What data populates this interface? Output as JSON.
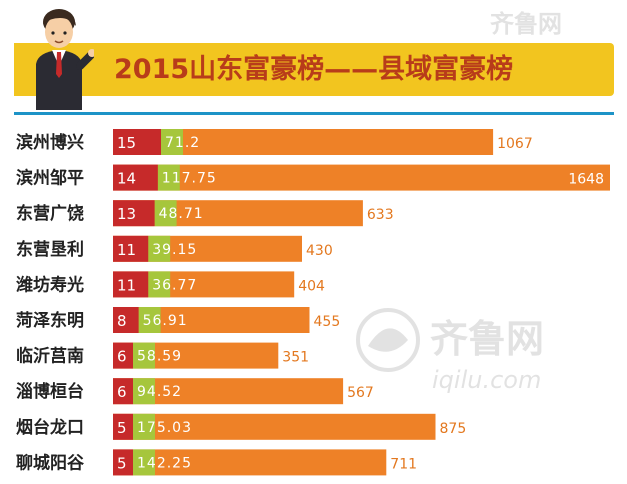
{
  "header": {
    "title": "2015山东富豪榜——县域富豪榜"
  },
  "watermark": {
    "brand": "齐鲁网",
    "domain": "iqilu.com"
  },
  "colors": {
    "rank": "#c62a2a",
    "middle": "#a6c63c",
    "total": "#ee8127",
    "banner": "#f2c51f",
    "title": "#b83c1a",
    "separator": "#1d93c7"
  },
  "chart_data": {
    "type": "bar",
    "orientation": "horizontal",
    "stacked": true,
    "categories": [
      "滨州博兴",
      "滨州邹平",
      "东营广饶",
      "东营垦利",
      "潍坊寿光",
      "菏泽东明",
      "临沂莒南",
      "淄博桓台",
      "烟台龙口",
      "聊城阳谷"
    ],
    "series": [
      {
        "values": [
          15,
          14,
          13,
          11,
          11,
          8,
          6,
          6,
          5,
          5
        ]
      },
      {
        "values": [
          "71.2",
          "117.75",
          "48.71",
          "39.15",
          "36.77",
          "56.91",
          "58.59",
          "94.52",
          "175.03",
          "142.25"
        ]
      },
      {
        "values": [
          1067,
          1648,
          633,
          430,
          404,
          455,
          351,
          567,
          875,
          711
        ]
      }
    ],
    "grid": false,
    "legend": "none"
  }
}
